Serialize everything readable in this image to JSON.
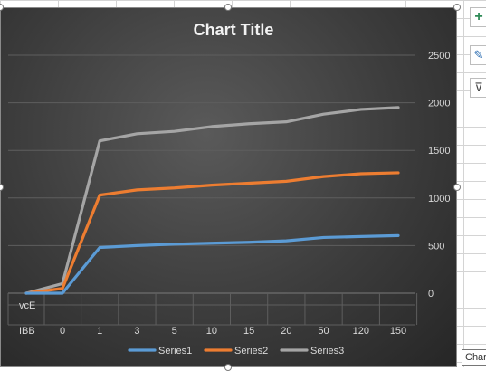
{
  "chart_data": {
    "type": "line",
    "title": "Chart Title",
    "categories": [
      "0",
      "1",
      "3",
      "5",
      "10",
      "15",
      "20",
      "50",
      "120",
      "150"
    ],
    "category_row_labels": [
      "vcE",
      "IBB"
    ],
    "series": [
      {
        "name": "Series1",
        "color": "#5b9bd5",
        "values": [
          0,
          480,
          500,
          515,
          525,
          535,
          550,
          585,
          595,
          605
        ]
      },
      {
        "name": "Series2",
        "color": "#ed7d31",
        "values": [
          50,
          1030,
          1085,
          1105,
          1135,
          1155,
          1175,
          1225,
          1255,
          1265
        ]
      },
      {
        "name": "Series3",
        "color": "#a5a5a5",
        "values": [
          100,
          1600,
          1675,
          1700,
          1750,
          1780,
          1800,
          1880,
          1930,
          1950
        ]
      }
    ],
    "yticks": [
      "0",
      "500",
      "1000",
      "1500",
      "2000",
      "2500"
    ],
    "ylim": [
      0,
      2500
    ],
    "axis_position": "right",
    "grid": true,
    "legend": "bottom"
  },
  "ui": {
    "buttons": [
      {
        "name": "chart-elements-button",
        "glyph": "+"
      },
      {
        "name": "chart-styles-button",
        "glyph": "✎"
      },
      {
        "name": "chart-filters-button",
        "glyph": "⊽"
      }
    ],
    "tooltip_text": "Chart"
  }
}
